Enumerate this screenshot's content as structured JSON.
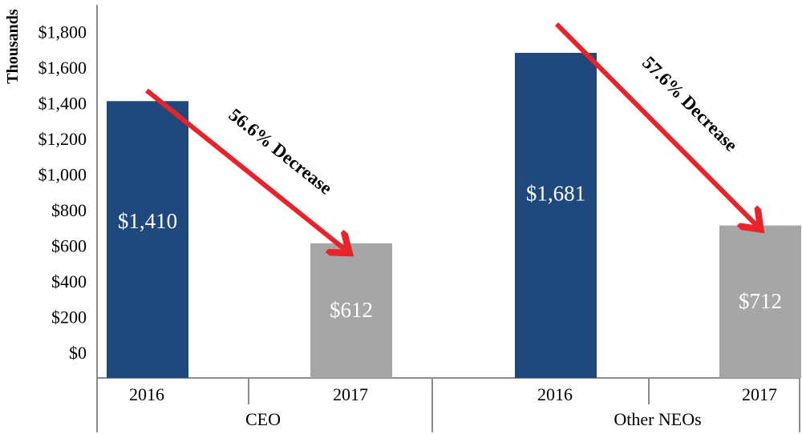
{
  "chart_data": {
    "type": "bar",
    "ylabel": "Thousands",
    "ylim": [
      0,
      1800
    ],
    "y_ticks": [
      "$0",
      "$200",
      "$400",
      "$600",
      "$800",
      "$1,000",
      "$1,200",
      "$1,400",
      "$1,600",
      "$1,800"
    ],
    "grid": false,
    "groups": [
      {
        "name": "CEO",
        "bars": [
          {
            "category": "2016",
            "value": 1410,
            "label": "$1,410",
            "color": "#1f497d"
          },
          {
            "category": "2017",
            "value": 612,
            "label": "$612",
            "color": "#a6a6a6"
          }
        ],
        "annotation": "56.6% Decrease"
      },
      {
        "name": "Other NEOs",
        "bars": [
          {
            "category": "2016",
            "value": 1681,
            "label": "$1,681",
            "color": "#1f497d"
          },
          {
            "category": "2017",
            "value": 712,
            "label": "$712",
            "color": "#a6a6a6"
          }
        ],
        "annotation": "57.6% Decrease"
      }
    ],
    "arrow_color": "#e8232a",
    "axis_color": "#8c8c8c"
  }
}
